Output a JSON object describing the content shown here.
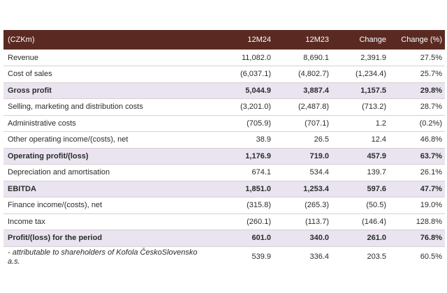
{
  "table": {
    "headers": [
      "(CZKm)",
      "12M24",
      "12M23",
      "Change",
      "Change (%)"
    ],
    "rows": [
      {
        "label": "Revenue",
        "m24": "11,082.0",
        "m23": "8,690.1",
        "change": "2,391.9",
        "pct": "27.5%",
        "bold": false
      },
      {
        "label": "Cost of sales",
        "m24": "(6,037.1)",
        "m23": "(4,802.7)",
        "change": "(1,234.4)",
        "pct": "25.7%",
        "bold": false
      },
      {
        "label": "Gross profit",
        "m24": "5,044.9",
        "m23": "3,887.4",
        "change": "1,157.5",
        "pct": "29.8%",
        "bold": true
      },
      {
        "label": "Selling, marketing and distribution costs",
        "m24": "(3,201.0)",
        "m23": "(2,487.8)",
        "change": "(713.2)",
        "pct": "28.7%",
        "bold": false
      },
      {
        "label": "Administrative costs",
        "m24": "(705.9)",
        "m23": "(707.1)",
        "change": "1.2",
        "pct": "(0.2%)",
        "bold": false
      },
      {
        "label": "Other operating income/(costs), net",
        "m24": "38.9",
        "m23": "26.5",
        "change": "12.4",
        "pct": "46.8%",
        "bold": false
      },
      {
        "label": "Operating profit/(loss)",
        "m24": "1,176.9",
        "m23": "719.0",
        "change": "457.9",
        "pct": "63.7%",
        "bold": true
      },
      {
        "label": "Depreciation and amortisation",
        "m24": "674.1",
        "m23": "534.4",
        "change": "139.7",
        "pct": "26.1%",
        "bold": false
      },
      {
        "label": "EBITDA",
        "m24": "1,851.0",
        "m23": "1,253.4",
        "change": "597.6",
        "pct": "47.7%",
        "bold": true
      },
      {
        "label": "Finance income/(costs), net",
        "m24": "(315.8)",
        "m23": "(265.3)",
        "change": "(50.5)",
        "pct": "19.0%",
        "bold": false
      },
      {
        "label": "Income tax",
        "m24": "(260.1)",
        "m23": "(113.7)",
        "change": "(146.4)",
        "pct": "128.8%",
        "bold": false
      },
      {
        "label": "Profit/(loss) for the period",
        "m24": "601.0",
        "m23": "340.0",
        "change": "261.0",
        "pct": "76.8%",
        "bold": true
      },
      {
        "label": "- attributable to shareholders of Kofola ČeskoSlovensko a.s.",
        "m24": "539.9",
        "m23": "336.4",
        "change": "203.5",
        "pct": "60.5%",
        "bold": false
      }
    ]
  },
  "colors": {
    "header_bg": "#5a2a22",
    "highlight_row_bg": "#e9e4ef"
  }
}
